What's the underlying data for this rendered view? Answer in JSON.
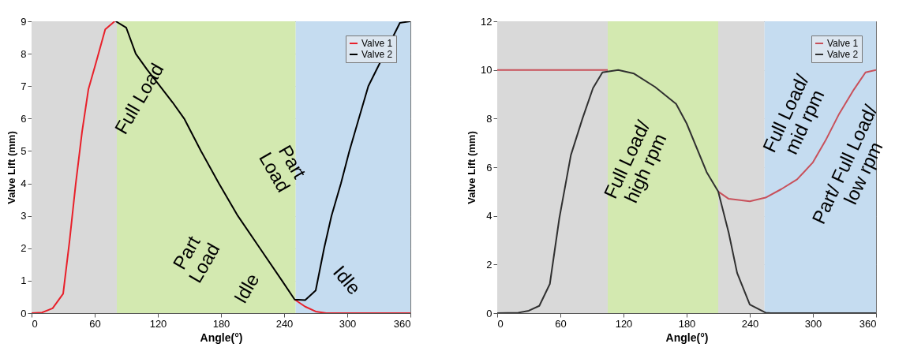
{
  "chart_data": [
    {
      "type": "line",
      "xlabel": "Angle(°)",
      "ylabel": "Valve Lift (mm)",
      "xlim": [
        0,
        360
      ],
      "ylim": [
        0,
        9
      ],
      "xticks": [
        0,
        60,
        120,
        180,
        240,
        300,
        360
      ],
      "yticks": [
        0,
        1,
        2,
        3,
        4,
        5,
        6,
        7,
        8,
        9
      ],
      "grid": true,
      "legend": "top right",
      "bands": [
        {
          "axis": "x",
          "from": 0,
          "to": 81,
          "color": "#d9d9d9"
        },
        {
          "axis": "x",
          "from": 81,
          "to": 251,
          "color": "#d3e9b0"
        },
        {
          "axis": "x",
          "from": 251,
          "to": 360,
          "color": "#c5dcf0"
        }
      ],
      "series": [
        {
          "name": "Valve 1",
          "color": "#e8202a",
          "x": [
            0,
            10,
            20,
            30,
            36,
            42,
            48,
            54,
            61,
            70,
            79,
            165,
            250,
            260,
            270,
            280,
            300,
            360
          ],
          "values": [
            0,
            0.02,
            0.15,
            0.6,
            2.2,
            4,
            5.6,
            6.9,
            7.7,
            8.75,
            9,
            null,
            0.42,
            0.2,
            0.05,
            0,
            0,
            0
          ]
        },
        {
          "name": "Valve 2",
          "color": "#000000",
          "x": [
            80,
            90,
            99,
            110,
            122,
            134,
            145,
            161,
            178,
            196,
            217,
            238,
            250,
            260,
            270,
            278,
            285,
            294,
            302,
            311,
            320,
            350,
            360
          ],
          "values": [
            9,
            8.8,
            8,
            7.5,
            7,
            6.5,
            6,
            5,
            4,
            3,
            2,
            1,
            0.42,
            0.4,
            0.7,
            2,
            3,
            4,
            5,
            6,
            7,
            8.95,
            9
          ]
        }
      ],
      "annotations": [
        "Full Load",
        "Part\nLoad",
        "Part\nLoad",
        "Idle",
        "Idle"
      ]
    },
    {
      "type": "line",
      "xlabel": "Angle(°)",
      "ylabel": "Valve Lift (mm)",
      "xlim": [
        0,
        360
      ],
      "ylim": [
        0,
        12
      ],
      "xticks": [
        0,
        60,
        120,
        180,
        240,
        300,
        360
      ],
      "yticks": [
        0,
        2,
        4,
        6,
        8,
        10,
        12
      ],
      "grid": true,
      "legend": "top right",
      "bands": [
        {
          "axis": "x",
          "from": 0,
          "to": 105,
          "color": "#d9d9d9"
        },
        {
          "axis": "x",
          "from": 105,
          "to": 210,
          "color": "#d3e9b0"
        },
        {
          "axis": "x",
          "from": 210,
          "to": 254,
          "color": "#d9d9d9"
        },
        {
          "axis": "x",
          "from": 254,
          "to": 360,
          "color": "#c5dcf0"
        }
      ],
      "series": [
        {
          "name": "Valve 1",
          "color": "#c8505a",
          "x": [
            0,
            50,
            105,
            160,
            210,
            220,
            240,
            255,
            270,
            285,
            300,
            312,
            325,
            339,
            350,
            360
          ],
          "values": [
            10,
            10,
            10,
            null,
            5,
            4.7,
            4.6,
            4.75,
            5.1,
            5.5,
            6.2,
            7.1,
            8.2,
            9.2,
            9.9,
            10
          ]
        },
        {
          "name": "Valve 2",
          "color": "#303030",
          "x": [
            0,
            20,
            30,
            40,
            50,
            59,
            70,
            81,
            91,
            100,
            115,
            130,
            150,
            170,
            180,
            199,
            210,
            220,
            228,
            240,
            255,
            260,
            360
          ],
          "values": [
            0,
            0.02,
            0.1,
            0.3,
            1.2,
            3.9,
            6.5,
            8,
            9.25,
            9.9,
            10,
            9.85,
            9.3,
            8.6,
            7.8,
            5.8,
            5,
            3.3,
            1.65,
            0.35,
            0.02,
            0,
            0
          ]
        }
      ],
      "annotations": [
        "Full Load/\nhigh rpm",
        "Full Load/\nmid rpm",
        "Part/ Full Load/\nlow rpm"
      ]
    }
  ]
}
